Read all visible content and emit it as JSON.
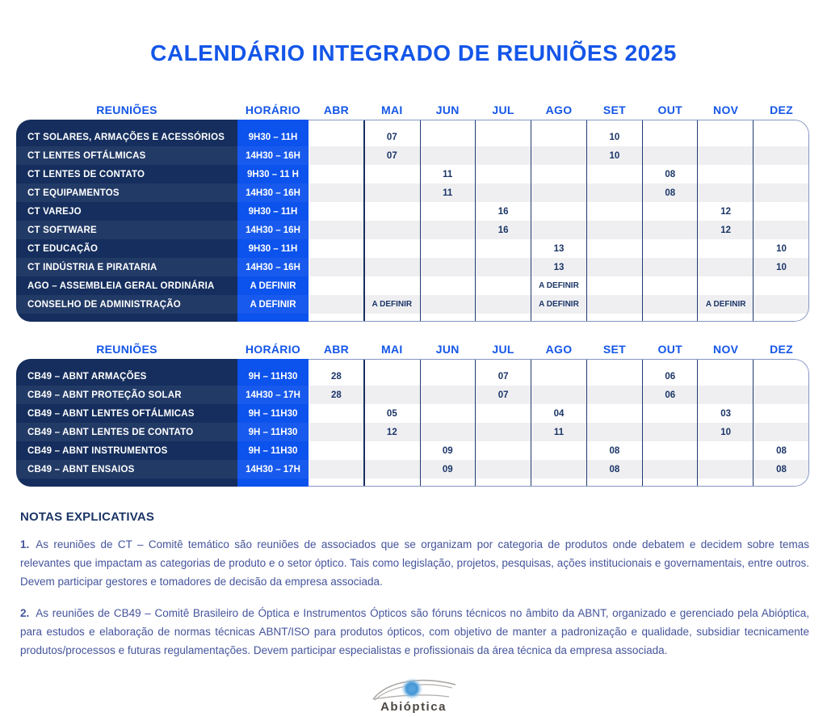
{
  "title": "CALENDÁRIO INTEGRADO DE REUNIÕES 2025",
  "months": [
    "ABR",
    "MAI",
    "JUN",
    "JUL",
    "AGO",
    "SET",
    "OUT",
    "NOV",
    "DEZ"
  ],
  "column_headers": {
    "meetings": "REUNIÕES",
    "time": "HORÁRIO"
  },
  "tables": [
    {
      "name": "ct-meetings",
      "rows": [
        {
          "name": "CT SOLARES, ARMAÇÕES E ACESSÓRIOS",
          "time": "9H30 – 11H",
          "cells": {
            "MAI": "07",
            "SET": "10"
          }
        },
        {
          "name": "CT LENTES OFTÁLMICAS",
          "time": "14H30 – 16H",
          "cells": {
            "MAI": "07",
            "SET": "10"
          }
        },
        {
          "name": "CT LENTES DE CONTATO",
          "time": "9H30 – 11 H",
          "cells": {
            "JUN": "11",
            "OUT": "08"
          }
        },
        {
          "name": "CT EQUIPAMENTOS",
          "time": "14H30 – 16H",
          "cells": {
            "JUN": "11",
            "OUT": "08"
          }
        },
        {
          "name": "CT VAREJO",
          "time": "9H30 – 11H",
          "cells": {
            "JUL": "16",
            "NOV": "12"
          }
        },
        {
          "name": "CT SOFTWARE",
          "time": "14H30 – 16H",
          "cells": {
            "JUL": "16",
            "NOV": "12"
          }
        },
        {
          "name": "CT EDUCAÇÃO",
          "time": "9H30 – 11H",
          "cells": {
            "AGO": "13",
            "DEZ": "10"
          }
        },
        {
          "name": "CT INDÚSTRIA E PIRATARIA",
          "time": "14H30 – 16H",
          "cells": {
            "AGO": "13",
            "DEZ": "10"
          }
        },
        {
          "name": "AGO – ASSEMBLEIA GERAL ORDINÁRIA",
          "time": "A DEFINIR",
          "cells": {
            "AGO": "A DEFINIR"
          }
        },
        {
          "name": "CONSELHO DE ADMINISTRAÇÃO",
          "time": "A DEFINIR",
          "cells": {
            "MAI": "A DEFINIR",
            "AGO": "A DEFINIR",
            "NOV": "A DEFINIR"
          }
        }
      ]
    },
    {
      "name": "cb49-meetings",
      "rows": [
        {
          "name": "CB49 – ABNT ARMAÇÕES",
          "time": "9H – 11H30",
          "cells": {
            "ABR": "28",
            "JUL": "07",
            "OUT": "06"
          }
        },
        {
          "name": "CB49 – ABNT PROTEÇÃO SOLAR",
          "time": "14H30 – 17H",
          "cells": {
            "ABR": "28",
            "JUL": "07",
            "OUT": "06"
          }
        },
        {
          "name": "CB49 – ABNT LENTES OFTÁLMICAS",
          "time": "9H – 11H30",
          "cells": {
            "MAI": "05",
            "AGO": "04",
            "NOV": "03"
          }
        },
        {
          "name": "CB49 – ABNT LENTES DE CONTATO",
          "time": "9H – 11H30",
          "cells": {
            "MAI": "12",
            "AGO": "11",
            "NOV": "10"
          }
        },
        {
          "name": "CB49 – ABNT INSTRUMENTOS",
          "time": "9H – 11H30",
          "cells": {
            "JUN": "09",
            "SET": "08",
            "DEZ": "08"
          }
        },
        {
          "name": "CB49 – ABNT ENSAIOS",
          "time": "14H30 – 17H",
          "cells": {
            "JUN": "09",
            "SET": "08",
            "DEZ": "08"
          }
        }
      ]
    }
  ],
  "notes": {
    "heading": "NOTAS EXPLICATIVAS",
    "items": [
      {
        "num": "1.",
        "text": "As reuniões de CT – Comitê temático são reuniões de associados que se organizam por categoria de produtos onde debatem e decidem sobre temas relevantes que impactam as categorias de produto e o setor óptico. Tais como legislação, projetos, pesquisas, ações institucionais e governamentais, entre outros. Devem participar gestores e tomadores de decisão da empresa associada."
      },
      {
        "num": "2.",
        "text": "As reuniões de CB49 – Comitê Brasileiro de Óptica e Instrumentos Ópticos são fóruns técnicos no âmbito da ABNT, organizado e gerenciado pela Abióptica, para estudos e elaboração de normas técnicas ABNT/ISO para produtos ópticos, com objetivo de manter a padronização e qualidade, subsidiar tecnicamente produtos/processos e futuras regulamentações. Devem participar especialistas e profissionais da área técnica da empresa associada."
      }
    ]
  },
  "footer": {
    "logo_text": "Abióptica"
  },
  "colors": {
    "accent_blue": "#1456e8",
    "horario_blue": "#0c52ec",
    "navy": "#152e5d",
    "cell_text": "#1b3567",
    "stripe_gray": "#efeff2",
    "note_text": "#44549b"
  }
}
